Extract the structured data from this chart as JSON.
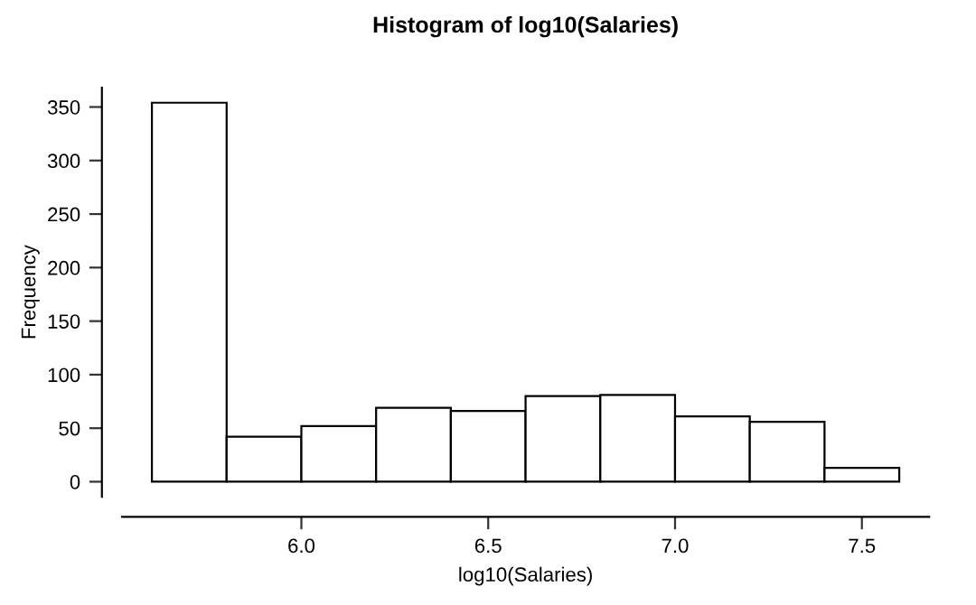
{
  "chart_data": {
    "type": "histogram",
    "title": "Histogram of log10(Salaries)",
    "xlabel": "log10(Salaries)",
    "ylabel": "Frequency",
    "bins": [
      5.6,
      5.8,
      6.0,
      6.2,
      6.4,
      6.6,
      6.8,
      7.0,
      7.2,
      7.4,
      7.6
    ],
    "values": [
      354,
      42,
      52,
      69,
      66,
      80,
      81,
      61,
      56,
      13
    ],
    "color": "#ffffff",
    "xlim": [
      5.52,
      7.68
    ],
    "ylim": [
      -14,
      368
    ],
    "xticks": [
      {
        "value": 6.0,
        "label": "6.0"
      },
      {
        "value": 6.5,
        "label": "6.5"
      },
      {
        "value": 7.0,
        "label": "7.0"
      },
      {
        "value": 7.5,
        "label": "7.5"
      }
    ],
    "yticks": [
      0,
      50,
      100,
      150,
      200,
      250,
      300,
      350
    ],
    "grid": false
  }
}
